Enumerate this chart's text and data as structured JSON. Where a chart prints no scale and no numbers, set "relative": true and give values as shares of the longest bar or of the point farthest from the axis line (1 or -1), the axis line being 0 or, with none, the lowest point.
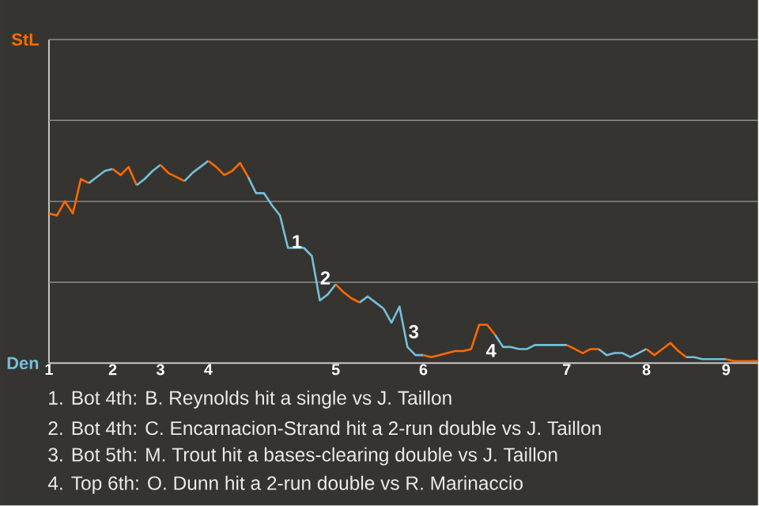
{
  "chart_data": {
    "type": "line",
    "relative": true,
    "categories": [
      "1",
      null,
      null,
      null,
      null,
      null,
      null,
      null,
      "2",
      null,
      null,
      null,
      null,
      null,
      "3",
      null,
      null,
      null,
      null,
      null,
      "4",
      null,
      null,
      null,
      null,
      null,
      null,
      null,
      null,
      null,
      null,
      null,
      null,
      null,
      null,
      null,
      "5",
      null,
      null,
      null,
      null,
      null,
      null,
      null,
      null,
      null,
      null,
      "6",
      null,
      null,
      null,
      null,
      null,
      null,
      null,
      null,
      null,
      null,
      null,
      null,
      null,
      null,
      null,
      null,
      null,
      "7",
      null,
      null,
      null,
      null,
      null,
      null,
      null,
      null,
      null,
      "8",
      null,
      null,
      null,
      null,
      null,
      null,
      null,
      null,
      null,
      "9",
      null,
      null,
      null,
      null
    ],
    "ref_lines": [
      {
        "axis": "y",
        "value": 0.4,
        "color": "#8c8c8c"
      },
      {
        "axis": "y",
        "value": 0.8,
        "color": "#8c8c8c"
      },
      {
        "axis": "y",
        "value": 1.2,
        "color": "#8c8c8c"
      },
      {
        "axis": "y",
        "value": 1.6,
        "color": "#8c8c8c"
      }
    ],
    "legend": false,
    "marker": "none",
    "line_style": "solid",
    "series": [
      {
        "name": "StL",
        "color": "#ff6a00",
        "values": [
          0.74,
          0.73,
          0.8,
          0.74,
          0.91,
          0.89,
          null,
          null,
          null,
          null,
          null,
          null,
          null,
          null,
          null,
          null,
          null,
          null,
          null,
          null,
          null,
          null,
          null,
          null,
          null,
          null,
          null,
          null,
          null,
          null,
          null,
          null,
          null,
          null,
          null,
          null,
          null,
          null,
          null,
          null,
          null,
          null,
          null,
          null,
          null,
          null,
          null,
          null,
          null,
          null,
          null,
          null,
          null,
          null,
          null,
          null,
          null,
          null,
          null,
          null,
          null,
          null,
          null,
          null,
          null,
          null,
          null,
          null,
          null,
          null,
          null,
          null,
          null,
          null,
          null,
          null,
          null,
          null,
          null,
          null,
          null,
          null,
          null,
          null,
          null,
          null,
          null,
          null,
          null,
          null
        ]
      },
      {
        "name": "Den",
        "color": "#74c0dc",
        "values": [
          null,
          null,
          null,
          null,
          null,
          0.89,
          0.92,
          0.95,
          0.96,
          null,
          null,
          null,
          null,
          null,
          null,
          null,
          null,
          null,
          null,
          null,
          null,
          null,
          null,
          null,
          null,
          null,
          null,
          null,
          null,
          null,
          null,
          null,
          null,
          null,
          null,
          null,
          null,
          null,
          null,
          null,
          null,
          null,
          null,
          null,
          null,
          null,
          null,
          null,
          null,
          null,
          null,
          null,
          null,
          null,
          null,
          null,
          null,
          null,
          null,
          null,
          null,
          null,
          null,
          null,
          null,
          null,
          null,
          null,
          null,
          null,
          null,
          null,
          null,
          null,
          null,
          null,
          null,
          null,
          null,
          null,
          null,
          null,
          null,
          null,
          null,
          null,
          null,
          null,
          null,
          null
        ]
      },
      {
        "color": "#ff6a00",
        "values": [
          null,
          null,
          null,
          null,
          null,
          null,
          null,
          null,
          0.96,
          0.93,
          0.97,
          0.88,
          null,
          null,
          null,
          null,
          null,
          null,
          null,
          null,
          null,
          null,
          null,
          null,
          null,
          null,
          null,
          null,
          null,
          null,
          null,
          null,
          null,
          null,
          null,
          null,
          null,
          null,
          null,
          null,
          null,
          null,
          null,
          null,
          null,
          null,
          null,
          null,
          null,
          null,
          null,
          null,
          null,
          null,
          null,
          null,
          null,
          null,
          null,
          null,
          null,
          null,
          null,
          null,
          null,
          null,
          null,
          null,
          null,
          null,
          null,
          null,
          null,
          null,
          null,
          null,
          null,
          null,
          null,
          null,
          null,
          null,
          null,
          null,
          null,
          null,
          null,
          null,
          null,
          null
        ]
      },
      {
        "color": "#74c0dc",
        "values": [
          null,
          null,
          null,
          null,
          null,
          null,
          null,
          null,
          null,
          null,
          null,
          0.88,
          0.91,
          0.95,
          0.98,
          null,
          null,
          null,
          null,
          null,
          null,
          null,
          null,
          null,
          null,
          null,
          null,
          null,
          null,
          null,
          null,
          null,
          null,
          null,
          null,
          null,
          null,
          null,
          null,
          null,
          null,
          null,
          null,
          null,
          null,
          null,
          null,
          null,
          null,
          null,
          null,
          null,
          null,
          null,
          null,
          null,
          null,
          null,
          null,
          null,
          null,
          null,
          null,
          null,
          null,
          null,
          null,
          null,
          null,
          null,
          null,
          null,
          null,
          null,
          null,
          null,
          null,
          null,
          null,
          null,
          null,
          null,
          null,
          null,
          null,
          null,
          null,
          null,
          null,
          null
        ]
      },
      {
        "color": "#ff6a00",
        "values": [
          null,
          null,
          null,
          null,
          null,
          null,
          null,
          null,
          null,
          null,
          null,
          null,
          null,
          null,
          0.98,
          0.94,
          0.92,
          0.9,
          null,
          null,
          null,
          null,
          null,
          null,
          null,
          null,
          null,
          null,
          null,
          null,
          null,
          null,
          null,
          null,
          null,
          null,
          null,
          null,
          null,
          null,
          null,
          null,
          null,
          null,
          null,
          null,
          null,
          null,
          null,
          null,
          null,
          null,
          null,
          null,
          null,
          null,
          null,
          null,
          null,
          null,
          null,
          null,
          null,
          null,
          null,
          null,
          null,
          null,
          null,
          null,
          null,
          null,
          null,
          null,
          null,
          null,
          null,
          null,
          null,
          null,
          null,
          null,
          null,
          null,
          null,
          null,
          null,
          null,
          null,
          null
        ]
      },
      {
        "color": "#74c0dc",
        "values": [
          null,
          null,
          null,
          null,
          null,
          null,
          null,
          null,
          null,
          null,
          null,
          null,
          null,
          null,
          null,
          null,
          null,
          0.9,
          0.94,
          0.97,
          1,
          null,
          null,
          null,
          null,
          null,
          null,
          null,
          null,
          null,
          null,
          null,
          null,
          null,
          null,
          null,
          null,
          null,
          null,
          null,
          null,
          null,
          null,
          null,
          null,
          null,
          null,
          null,
          null,
          null,
          null,
          null,
          null,
          null,
          null,
          null,
          null,
          null,
          null,
          null,
          null,
          null,
          null,
          null,
          null,
          null,
          null,
          null,
          null,
          null,
          null,
          null,
          null,
          null,
          null,
          null,
          null,
          null,
          null,
          null,
          null,
          null,
          null,
          null,
          null,
          null,
          null,
          null,
          null,
          null
        ]
      },
      {
        "color": "#ff6a00",
        "values": [
          null,
          null,
          null,
          null,
          null,
          null,
          null,
          null,
          null,
          null,
          null,
          null,
          null,
          null,
          null,
          null,
          null,
          null,
          null,
          null,
          1,
          0.97,
          0.93,
          0.95,
          0.99,
          0.92,
          null,
          null,
          null,
          null,
          null,
          null,
          null,
          null,
          null,
          null,
          null,
          null,
          null,
          null,
          null,
          null,
          null,
          null,
          null,
          null,
          null,
          null,
          null,
          null,
          null,
          null,
          null,
          null,
          null,
          null,
          null,
          null,
          null,
          null,
          null,
          null,
          null,
          null,
          null,
          null,
          null,
          null,
          null,
          null,
          null,
          null,
          null,
          null,
          null,
          null,
          null,
          null,
          null,
          null,
          null,
          null,
          null,
          null,
          null,
          null,
          null,
          null,
          null,
          null
        ]
      },
      {
        "color": "#74c0dc",
        "values": [
          null,
          null,
          null,
          null,
          null,
          null,
          null,
          null,
          null,
          null,
          null,
          null,
          null,
          null,
          null,
          null,
          null,
          null,
          null,
          null,
          null,
          null,
          null,
          null,
          null,
          0.92,
          0.84,
          0.84,
          0.78,
          0.73,
          0.57,
          0.57,
          0.57,
          0.53,
          0.31,
          0.34,
          0.39,
          null,
          null,
          null,
          null,
          null,
          null,
          null,
          null,
          null,
          null,
          null,
          null,
          null,
          null,
          null,
          null,
          null,
          null,
          null,
          null,
          null,
          null,
          null,
          null,
          null,
          null,
          null,
          null,
          null,
          null,
          null,
          null,
          null,
          null,
          null,
          null,
          null,
          null,
          null,
          null,
          null,
          null,
          null,
          null,
          null,
          null,
          null,
          null,
          null,
          null,
          null,
          null,
          null
        ]
      },
      {
        "color": "#ff6a00",
        "values": [
          null,
          null,
          null,
          null,
          null,
          null,
          null,
          null,
          null,
          null,
          null,
          null,
          null,
          null,
          null,
          null,
          null,
          null,
          null,
          null,
          null,
          null,
          null,
          null,
          null,
          null,
          null,
          null,
          null,
          null,
          null,
          null,
          null,
          null,
          null,
          null,
          0.39,
          0.35,
          0.32,
          0.3,
          null,
          null,
          null,
          null,
          null,
          null,
          null,
          null,
          null,
          null,
          null,
          null,
          null,
          null,
          null,
          null,
          null,
          null,
          null,
          null,
          null,
          null,
          null,
          null,
          null,
          null,
          null,
          null,
          null,
          null,
          null,
          null,
          null,
          null,
          null,
          null,
          null,
          null,
          null,
          null,
          null,
          null,
          null,
          null,
          null,
          null,
          null,
          null,
          null,
          null
        ]
      },
      {
        "color": "#74c0dc",
        "values": [
          null,
          null,
          null,
          null,
          null,
          null,
          null,
          null,
          null,
          null,
          null,
          null,
          null,
          null,
          null,
          null,
          null,
          null,
          null,
          null,
          null,
          null,
          null,
          null,
          null,
          null,
          null,
          null,
          null,
          null,
          null,
          null,
          null,
          null,
          null,
          null,
          null,
          null,
          null,
          0.3,
          0.33,
          0.3,
          0.27,
          0.2,
          0.28,
          0.08,
          0.04,
          0.04,
          null,
          null,
          null,
          null,
          null,
          null,
          null,
          null,
          null,
          null,
          null,
          null,
          null,
          null,
          null,
          null,
          null,
          null,
          null,
          null,
          null,
          null,
          null,
          null,
          null,
          null,
          null,
          null,
          null,
          null,
          null,
          null,
          null,
          null,
          null,
          null,
          null,
          null,
          null,
          null,
          null,
          null
        ]
      },
      {
        "color": "#ff6a00",
        "values": [
          null,
          null,
          null,
          null,
          null,
          null,
          null,
          null,
          null,
          null,
          null,
          null,
          null,
          null,
          null,
          null,
          null,
          null,
          null,
          null,
          null,
          null,
          null,
          null,
          null,
          null,
          null,
          null,
          null,
          null,
          null,
          null,
          null,
          null,
          null,
          null,
          null,
          null,
          null,
          null,
          null,
          null,
          null,
          null,
          null,
          null,
          null,
          0.04,
          0.03,
          0.04,
          0.05,
          0.06,
          0.06,
          0.07,
          0.19,
          0.19,
          0.14,
          null,
          null,
          null,
          null,
          null,
          null,
          null,
          null,
          null,
          null,
          null,
          null,
          null,
          null,
          null,
          null,
          null,
          null,
          null,
          null,
          null,
          null,
          null,
          null,
          null,
          null,
          null,
          null,
          null,
          null,
          null,
          null,
          null
        ]
      },
      {
        "color": "#74c0dc",
        "values": [
          null,
          null,
          null,
          null,
          null,
          null,
          null,
          null,
          null,
          null,
          null,
          null,
          null,
          null,
          null,
          null,
          null,
          null,
          null,
          null,
          null,
          null,
          null,
          null,
          null,
          null,
          null,
          null,
          null,
          null,
          null,
          null,
          null,
          null,
          null,
          null,
          null,
          null,
          null,
          null,
          null,
          null,
          null,
          null,
          null,
          null,
          null,
          null,
          null,
          null,
          null,
          null,
          null,
          null,
          null,
          null,
          0.14,
          0.08,
          0.08,
          0.07,
          0.07,
          0.09,
          0.09,
          0.09,
          0.09,
          0.09,
          null,
          null,
          null,
          null,
          null,
          null,
          null,
          null,
          null,
          null,
          null,
          null,
          null,
          null,
          null,
          null,
          null,
          null,
          null,
          null,
          null,
          null,
          null,
          null
        ]
      },
      {
        "color": "#ff6a00",
        "values": [
          null,
          null,
          null,
          null,
          null,
          null,
          null,
          null,
          null,
          null,
          null,
          null,
          null,
          null,
          null,
          null,
          null,
          null,
          null,
          null,
          null,
          null,
          null,
          null,
          null,
          null,
          null,
          null,
          null,
          null,
          null,
          null,
          null,
          null,
          null,
          null,
          null,
          null,
          null,
          null,
          null,
          null,
          null,
          null,
          null,
          null,
          null,
          null,
          null,
          null,
          null,
          null,
          null,
          null,
          null,
          null,
          null,
          null,
          null,
          null,
          null,
          null,
          null,
          null,
          null,
          0.09,
          0.07,
          0.05,
          0.07,
          0.07,
          null,
          null,
          null,
          null,
          null,
          null,
          null,
          null,
          null,
          null,
          null,
          null,
          null,
          null,
          null,
          null,
          null,
          null,
          null,
          null
        ]
      },
      {
        "color": "#74c0dc",
        "values": [
          null,
          null,
          null,
          null,
          null,
          null,
          null,
          null,
          null,
          null,
          null,
          null,
          null,
          null,
          null,
          null,
          null,
          null,
          null,
          null,
          null,
          null,
          null,
          null,
          null,
          null,
          null,
          null,
          null,
          null,
          null,
          null,
          null,
          null,
          null,
          null,
          null,
          null,
          null,
          null,
          null,
          null,
          null,
          null,
          null,
          null,
          null,
          null,
          null,
          null,
          null,
          null,
          null,
          null,
          null,
          null,
          null,
          null,
          null,
          null,
          null,
          null,
          null,
          null,
          null,
          null,
          null,
          null,
          null,
          0.07,
          0.04,
          0.05,
          0.05,
          0.03,
          0.05,
          0.07,
          null,
          null,
          null,
          null,
          null,
          null,
          null,
          null,
          null,
          null,
          null,
          null,
          null,
          null
        ]
      },
      {
        "color": "#ff6a00",
        "values": [
          null,
          null,
          null,
          null,
          null,
          null,
          null,
          null,
          null,
          null,
          null,
          null,
          null,
          null,
          null,
          null,
          null,
          null,
          null,
          null,
          null,
          null,
          null,
          null,
          null,
          null,
          null,
          null,
          null,
          null,
          null,
          null,
          null,
          null,
          null,
          null,
          null,
          null,
          null,
          null,
          null,
          null,
          null,
          null,
          null,
          null,
          null,
          null,
          null,
          null,
          null,
          null,
          null,
          null,
          null,
          null,
          null,
          null,
          null,
          null,
          null,
          null,
          null,
          null,
          null,
          null,
          null,
          null,
          null,
          null,
          null,
          null,
          null,
          null,
          null,
          0.07,
          0.04,
          0.07,
          0.1,
          0.06,
          0.03,
          null,
          null,
          null,
          null,
          null,
          null,
          null,
          null,
          null
        ]
      },
      {
        "color": "#74c0dc",
        "values": [
          null,
          null,
          null,
          null,
          null,
          null,
          null,
          null,
          null,
          null,
          null,
          null,
          null,
          null,
          null,
          null,
          null,
          null,
          null,
          null,
          null,
          null,
          null,
          null,
          null,
          null,
          null,
          null,
          null,
          null,
          null,
          null,
          null,
          null,
          null,
          null,
          null,
          null,
          null,
          null,
          null,
          null,
          null,
          null,
          null,
          null,
          null,
          null,
          null,
          null,
          null,
          null,
          null,
          null,
          null,
          null,
          null,
          null,
          null,
          null,
          null,
          null,
          null,
          null,
          null,
          null,
          null,
          null,
          null,
          null,
          null,
          null,
          null,
          null,
          null,
          null,
          null,
          null,
          null,
          null,
          0.03,
          0.03,
          0.02,
          0.02,
          0.02,
          0.02,
          null,
          null,
          null,
          null
        ]
      },
      {
        "color": "#ff6a00",
        "values": [
          null,
          null,
          null,
          null,
          null,
          null,
          null,
          null,
          null,
          null,
          null,
          null,
          null,
          null,
          null,
          null,
          null,
          null,
          null,
          null,
          null,
          null,
          null,
          null,
          null,
          null,
          null,
          null,
          null,
          null,
          null,
          null,
          null,
          null,
          null,
          null,
          null,
          null,
          null,
          null,
          null,
          null,
          null,
          null,
          null,
          null,
          null,
          null,
          null,
          null,
          null,
          null,
          null,
          null,
          null,
          null,
          null,
          null,
          null,
          null,
          null,
          null,
          null,
          null,
          null,
          null,
          null,
          null,
          null,
          null,
          null,
          null,
          null,
          null,
          null,
          null,
          null,
          null,
          null,
          null,
          null,
          null,
          null,
          null,
          null,
          0.02,
          0.01,
          0.01,
          0.01,
          0.01
        ]
      }
    ],
    "annotations": [
      "1",
      "2",
      "3",
      "4",
      "1. Bot 4th: B. Reynolds hit a single vs J. Taillon",
      "2. Bot 4th: C. Encarnacion-Strand hit a 2-run double vs J. Taillon",
      "3. Bot 5th: M. Trout hit a bases-clearing double vs J. Taillon",
      "4. Top 6th: O. Dunn hit a 2-run double vs R. Marinaccio"
    ]
  }
}
